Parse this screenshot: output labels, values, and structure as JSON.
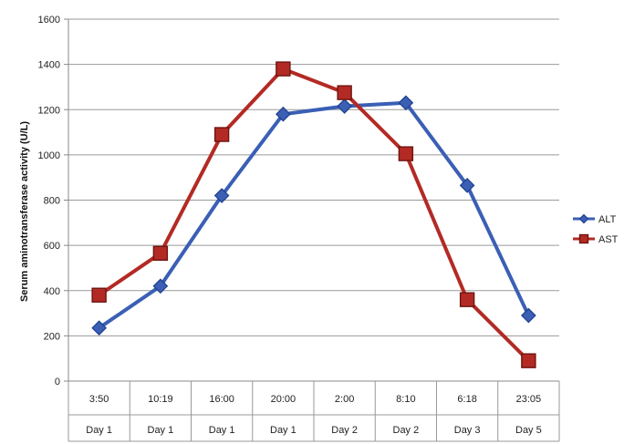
{
  "chart_data": {
    "type": "line",
    "title": "",
    "xlabel": "",
    "ylabel": "Serum aminotransferase activity (U/L)",
    "ylim": [
      0,
      1600
    ],
    "yticks": [
      0,
      200,
      400,
      600,
      800,
      1000,
      1200,
      1400,
      1600
    ],
    "grid": true,
    "legend_position": "right",
    "categories": [
      {
        "time": "3:50",
        "day": "Day 1"
      },
      {
        "time": "10:19",
        "day": "Day 1"
      },
      {
        "time": "16:00",
        "day": "Day 1"
      },
      {
        "time": "20:00",
        "day": "Day 1"
      },
      {
        "time": "2:00",
        "day": "Day 2"
      },
      {
        "time": "8:10",
        "day": "Day 2"
      },
      {
        "time": "6:18",
        "day": "Day 3"
      },
      {
        "time": "23:05",
        "day": "Day 5"
      }
    ],
    "series": [
      {
        "name": "ALT",
        "color": "#3a5fb5",
        "marker": "diamond",
        "values": [
          235,
          420,
          820,
          1180,
          1215,
          1230,
          865,
          290
        ]
      },
      {
        "name": "AST",
        "color": "#b32a24",
        "marker": "square",
        "values": [
          380,
          565,
          1090,
          1380,
          1275,
          1005,
          360,
          90
        ]
      }
    ]
  }
}
